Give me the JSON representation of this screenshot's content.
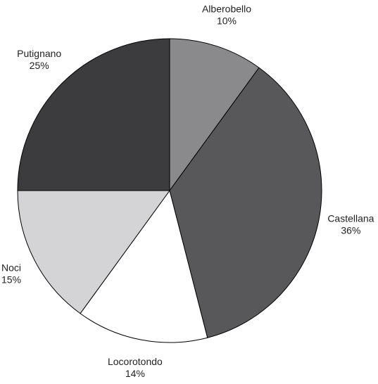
{
  "chart_data": {
    "type": "pie",
    "title": "",
    "start_angle_deg": 0,
    "direction": "clockwise",
    "slices": [
      {
        "label": "Alberobello",
        "value": 10,
        "percent_label": "10%",
        "color": "#8a8a8c"
      },
      {
        "label": "Castellana",
        "value": 36,
        "percent_label": "36%",
        "color": "#58585a"
      },
      {
        "label": "Locorotondo",
        "value": 14,
        "percent_label": "14%",
        "color": "#ffffff"
      },
      {
        "label": "Noci",
        "value": 15,
        "percent_label": "15%",
        "color": "#d4d4d6"
      },
      {
        "label": "Putignano",
        "value": 25,
        "percent_label": "25%",
        "color": "#3c3c3e"
      }
    ],
    "legend": "none",
    "slice_stroke_color": "#000000"
  }
}
